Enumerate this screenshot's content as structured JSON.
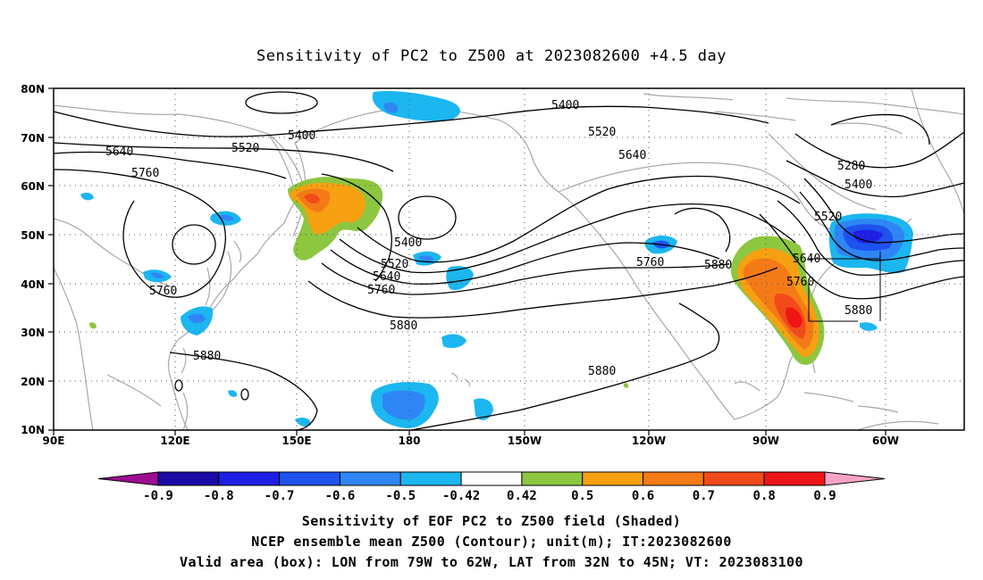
{
  "title": "Sensitivity of PC2 to Z500 at 2023082600 +4.5 day",
  "lat_ticks": [
    "80N",
    "70N",
    "60N",
    "50N",
    "40N",
    "30N",
    "20N",
    "10N"
  ],
  "lon_ticks": [
    "90E",
    "120E",
    "150E",
    "180",
    "150W",
    "120W",
    "90W",
    "60W"
  ],
  "contour_labels": [
    {
      "text": "5400",
      "id": "c5400-a"
    },
    {
      "text": "5400",
      "id": "c5400-b"
    },
    {
      "text": "5400",
      "id": "c5400-c"
    },
    {
      "text": "5400",
      "id": "c5400-d"
    },
    {
      "text": "5280",
      "id": "c5280"
    },
    {
      "text": "5520",
      "id": "c5520-a"
    },
    {
      "text": "5520",
      "id": "c5520-b"
    },
    {
      "text": "5520",
      "id": "c5520-c"
    },
    {
      "text": "5520",
      "id": "c5520-d"
    },
    {
      "text": "5640",
      "id": "c5640-a"
    },
    {
      "text": "5640",
      "id": "c5640-b"
    },
    {
      "text": "5640",
      "id": "c5640-c"
    },
    {
      "text": "5640",
      "id": "c5640-d"
    },
    {
      "text": "5760",
      "id": "c5760-a"
    },
    {
      "text": "5760",
      "id": "c5760-b"
    },
    {
      "text": "5760",
      "id": "c5760-c"
    },
    {
      "text": "5760",
      "id": "c5760-d"
    },
    {
      "text": "5760",
      "id": "c5760-e"
    },
    {
      "text": "5880",
      "id": "c5880-a"
    },
    {
      "text": "5880",
      "id": "c5880-b"
    },
    {
      "text": "5880",
      "id": "c5880-c"
    },
    {
      "text": "5880",
      "id": "c5880-d"
    },
    {
      "text": "5880",
      "id": "c5880-e"
    }
  ],
  "colorbar": {
    "colors": [
      "#9e0d8f",
      "#1a0aa6",
      "#1f1ee6",
      "#1e52f0",
      "#2e86f5",
      "#1cb6f0",
      "#ffffff",
      "#8dc63f",
      "#f7a012",
      "#f47a18",
      "#f34a1b",
      "#ef1515",
      "#f7a3c6"
    ],
    "labels": [
      "-0.9",
      "-0.8",
      "-0.7",
      "-0.6",
      "-0.5",
      "-0.42",
      "0.42",
      "0.5",
      "0.6",
      "0.7",
      "0.8",
      "0.9"
    ]
  },
  "footer": [
    "Sensitivity of EOF PC2 to Z500 field (Shaded)",
    "NCEP ensemble mean Z500 (Contour); unit(m); IT:2023082600",
    "Valid area (box): LON from 79W to 62W, LAT from 32N to 45N; VT: 2023083100"
  ]
}
